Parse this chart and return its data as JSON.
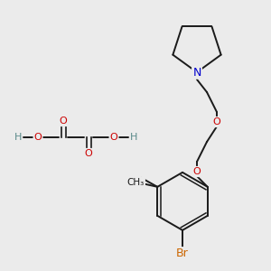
{
  "bg_color": "#ebebeb",
  "colors": {
    "C": "#1a1a1a",
    "O": "#cc0000",
    "N": "#0000cc",
    "Br": "#cc6600",
    "H": "#5a8a8a",
    "bond": "#1a1a1a"
  },
  "figsize": [
    3.0,
    3.0
  ],
  "dpi": 100
}
